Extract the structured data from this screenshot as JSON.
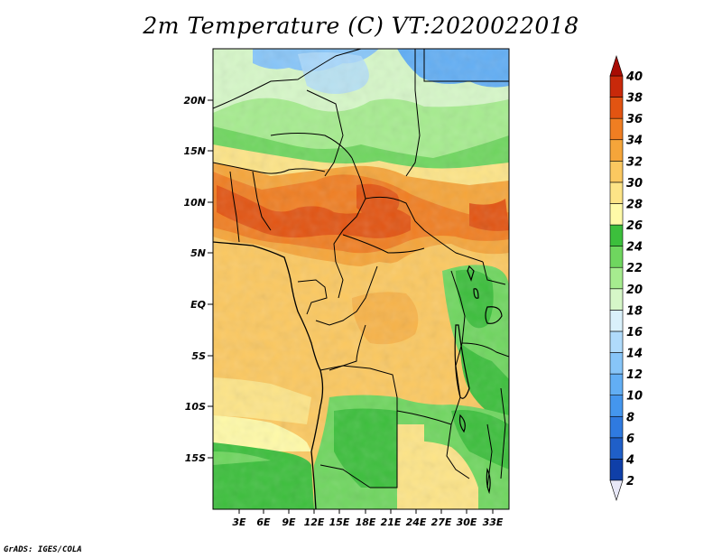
{
  "title": "2m Temperature (C) VT:2020022018",
  "credit": "GrADS: IGES/COLA",
  "lat_labels": [
    "20N",
    "15N",
    "10N",
    "5N",
    "EQ",
    "5S",
    "10S",
    "15S"
  ],
  "lon_labels": [
    "3E",
    "6E",
    "9E",
    "12E",
    "15E",
    "18E",
    "21E",
    "24E",
    "27E",
    "30E",
    "33E"
  ],
  "colorbar": {
    "labels": [
      "2",
      "4",
      "6",
      "8",
      "10",
      "12",
      "14",
      "16",
      "18",
      "20",
      "22",
      "24",
      "26",
      "28",
      "30",
      "32",
      "34",
      "36",
      "38",
      "40"
    ],
    "colors": [
      "#1a1a7a",
      "#0f3fa8",
      "#1f5fc8",
      "#2f7ae0",
      "#4496ee",
      "#62aef4",
      "#87c5f8",
      "#b0dbfb",
      "#daf1fb",
      "#d6f7c8",
      "#a6ec8f",
      "#6fd65f",
      "#3cbf3c",
      "#fffaa8",
      "#fde487",
      "#fbc860",
      "#f5a53a",
      "#f07e22",
      "#e25412",
      "#c8290a",
      "#a80c04"
    ]
  }
}
